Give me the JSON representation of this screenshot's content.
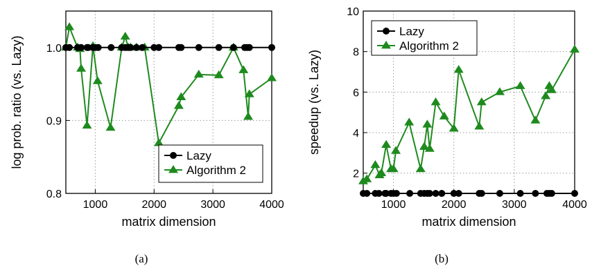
{
  "captions": [
    "(a)",
    "(b)"
  ],
  "colors": {
    "lazy": "#000000",
    "algorithm2": "#1e8a1e",
    "grid": "#9a9a9a"
  },
  "chart_data": [
    {
      "type": "line",
      "title": "",
      "xlabel": "matrix dimension",
      "ylabel": "log prob. ratio (vs. Lazy)",
      "xlim": [
        500,
        4000
      ],
      "ylim": [
        0.8,
        1.05
      ],
      "xticks": [
        1000,
        2000,
        3000,
        4000
      ],
      "yticks": [
        0.8,
        0.9,
        1.0
      ],
      "ytick_labels": [
        "0.8",
        "0.9",
        "1.0"
      ],
      "grid": true,
      "legend_position": "bottom-right",
      "series": [
        {
          "name": "Lazy",
          "marker": "circle",
          "x": [
            500,
            560,
            700,
            760,
            860,
            880,
            960,
            1000,
            1050,
            1270,
            1450,
            1510,
            1560,
            1600,
            1700,
            1800,
            2000,
            2080,
            2420,
            2460,
            2760,
            3100,
            3350,
            3540,
            3580,
            3620,
            4000
          ],
          "y": [
            1.0,
            1.0,
            1.0,
            1.0,
            1.0,
            1.0,
            1.0,
            1.0,
            1.0,
            1.0,
            1.0,
            1.0,
            1.0,
            1.0,
            1.0,
            1.0,
            1.0,
            1.0,
            1.0,
            1.0,
            1.0,
            1.0,
            1.0,
            1.0,
            1.0,
            1.0,
            1.0
          ]
        },
        {
          "name": "Algorithm 2",
          "marker": "triangle",
          "x": [
            500,
            560,
            700,
            740,
            760,
            860,
            960,
            1040,
            1260,
            1450,
            1510,
            1560,
            1600,
            1700,
            1840,
            2080,
            2420,
            2460,
            2760,
            3100,
            3350,
            3520,
            3600,
            3620,
            4000
          ],
          "y": [
            1.0,
            1.028,
            1.0,
            0.998,
            0.971,
            0.893,
            1.002,
            0.954,
            0.89,
            1.0,
            1.015,
            1.0,
            1.0,
            1.0,
            1.0,
            0.869,
            0.92,
            0.932,
            0.963,
            0.962,
            1.0,
            0.969,
            0.905,
            0.936,
            0.958
          ]
        }
      ]
    },
    {
      "type": "line",
      "title": "",
      "xlabel": "matrix dimension",
      "ylabel": "speedup (vs. Lazy)",
      "xlim": [
        500,
        4000
      ],
      "ylim": [
        1,
        10
      ],
      "xticks": [
        1000,
        2000,
        3000,
        4000
      ],
      "yticks": [
        2,
        4,
        6,
        8,
        10
      ],
      "ytick_labels": [
        "2",
        "4",
        "6",
        "8",
        "10"
      ],
      "grid": true,
      "legend_position": "top-left",
      "series": [
        {
          "name": "Lazy",
          "marker": "circle",
          "x": [
            500,
            560,
            700,
            760,
            860,
            880,
            960,
            1000,
            1050,
            1270,
            1450,
            1510,
            1560,
            1600,
            1700,
            1800,
            2000,
            2080,
            2420,
            2460,
            2760,
            3100,
            3350,
            3540,
            3580,
            3620,
            4000
          ],
          "y": [
            1,
            1,
            1,
            1,
            1,
            1,
            1,
            1,
            1,
            1,
            1,
            1,
            1,
            1,
            1,
            1,
            1,
            1,
            1,
            1,
            1,
            1,
            1,
            1,
            1,
            1,
            1
          ]
        },
        {
          "name": "Algorithm 2",
          "marker": "triangle",
          "x": [
            500,
            560,
            700,
            770,
            800,
            880,
            960,
            1000,
            1040,
            1260,
            1450,
            1510,
            1560,
            1600,
            1700,
            1840,
            2000,
            2080,
            2420,
            2460,
            2760,
            3100,
            3350,
            3520,
            3580,
            3620,
            4000
          ],
          "y": [
            1.6,
            1.7,
            2.4,
            1.9,
            2.0,
            3.4,
            2.2,
            2.2,
            3.1,
            4.5,
            2.2,
            3.3,
            4.4,
            3.2,
            5.5,
            4.8,
            4.2,
            7.1,
            4.3,
            5.5,
            6.0,
            6.3,
            4.6,
            5.8,
            6.3,
            6.1,
            8.1
          ]
        }
      ]
    }
  ]
}
